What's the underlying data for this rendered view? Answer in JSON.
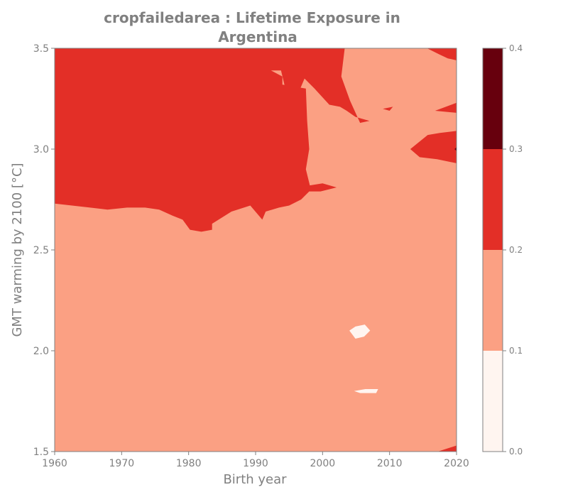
{
  "chart_data": {
    "type": "heatmap",
    "subtype": "filled-contour",
    "title_line1": "cropfailedarea : Lifetime Exposure in",
    "title_line2": "Argentina",
    "xlabel": "Birth year",
    "ylabel": "GMT warming by 2100 [°C]",
    "xlim": [
      1960,
      2020
    ],
    "ylim": [
      1.5,
      3.5
    ],
    "x_ticks": [
      "1960",
      "1970",
      "1980",
      "1990",
      "2000",
      "2010",
      "2020"
    ],
    "y_ticks": [
      "1.5",
      "2.0",
      "2.5",
      "3.0",
      "3.5"
    ],
    "colorbar": {
      "levels": [
        0.0,
        0.1,
        0.2,
        0.3,
        0.4
      ],
      "tick_labels": [
        "0.0",
        "0.1",
        "0.2",
        "0.3",
        "0.4"
      ],
      "colors": [
        "#fff5f0",
        "#fba083",
        "#e32f27",
        "#67000d"
      ]
    },
    "regions": [
      {
        "name": "background-0.1-0.2",
        "level": 1,
        "points": [
          [
            1960,
            1.5
          ],
          [
            2020,
            1.5
          ],
          [
            2020,
            3.5
          ],
          [
            1960,
            3.5
          ]
        ]
      },
      {
        "name": "upper-left-0.2-0.3",
        "level": 2,
        "points": [
          [
            1960,
            3.5
          ],
          [
            2003.3,
            3.5
          ],
          [
            2002.8,
            3.36
          ],
          [
            2004.1,
            3.24
          ],
          [
            2005.6,
            3.13
          ],
          [
            2007.0,
            3.14
          ],
          [
            2004.9,
            3.16
          ],
          [
            2003.6,
            3.19
          ],
          [
            2002.6,
            3.21
          ],
          [
            2001.0,
            3.22
          ],
          [
            1998.8,
            3.3
          ],
          [
            1997.3,
            3.35
          ],
          [
            1995.9,
            3.24
          ],
          [
            1994.8,
            3.25
          ],
          [
            1993.8,
            3.39
          ],
          [
            1992.3,
            3.39
          ],
          [
            1994.0,
            3.36
          ],
          [
            1994.0,
            3.32
          ],
          [
            1997.5,
            3.3
          ],
          [
            1997.7,
            3.14
          ],
          [
            1998.0,
            3.0
          ],
          [
            1997.5,
            2.9
          ],
          [
            1998.1,
            2.82
          ],
          [
            2000.0,
            2.83
          ],
          [
            2002.1,
            2.81
          ],
          [
            1999.7,
            2.79
          ],
          [
            1998.0,
            2.79
          ],
          [
            1996.8,
            2.75
          ],
          [
            1995.0,
            2.72
          ],
          [
            1993.5,
            2.71
          ],
          [
            1991.5,
            2.69
          ],
          [
            1991.0,
            2.65
          ],
          [
            1989.2,
            2.72
          ],
          [
            1986.4,
            2.69
          ],
          [
            1983.5,
            2.63
          ],
          [
            1983.5,
            2.6
          ],
          [
            1981.9,
            2.59
          ],
          [
            1980.2,
            2.6
          ],
          [
            1979.1,
            2.65
          ],
          [
            1977.6,
            2.67
          ],
          [
            1975.6,
            2.7
          ],
          [
            1973.5,
            2.71
          ],
          [
            1970.8,
            2.71
          ],
          [
            1967.9,
            2.7
          ],
          [
            1965.3,
            2.71
          ],
          [
            1960,
            2.73
          ]
        ]
      },
      {
        "name": "top-right-corner-0.2-0.3",
        "level": 2,
        "points": [
          [
            2015.6,
            3.5
          ],
          [
            2020,
            3.5
          ],
          [
            2020,
            3.44
          ],
          [
            2018.7,
            3.45
          ],
          [
            2017.4,
            3.47
          ]
        ]
      },
      {
        "name": "right-wedge-0.2-0.3",
        "level": 2,
        "points": [
          [
            2020,
            3.09
          ],
          [
            2017.5,
            3.08
          ],
          [
            2015.7,
            3.07
          ],
          [
            2013.1,
            3.0
          ],
          [
            2014.5,
            2.96
          ],
          [
            2017.1,
            2.95
          ],
          [
            2020,
            2.93
          ]
        ]
      },
      {
        "name": "right-spike-0.2-0.3",
        "level": 2,
        "points": [
          [
            2020,
            3.23
          ],
          [
            2016.8,
            3.19
          ],
          [
            2020,
            3.18
          ]
        ]
      },
      {
        "name": "small-blob-0.2-0.3",
        "level": 2,
        "points": [
          [
            2009.0,
            3.2
          ],
          [
            2010.5,
            3.21
          ],
          [
            2010.0,
            3.19
          ]
        ]
      },
      {
        "name": "bottom-right-corner-0.2-0.3",
        "level": 2,
        "points": [
          [
            2017.2,
            1.5
          ],
          [
            2020,
            1.5
          ],
          [
            2020,
            1.53
          ]
        ]
      },
      {
        "name": "tiny-dark-0.3-0.4",
        "level": 3,
        "points": [
          [
            2019.7,
            3.0
          ],
          [
            2020,
            3.01
          ],
          [
            2020,
            2.99
          ]
        ]
      },
      {
        "name": "white-blob-upper-0.0-0.1",
        "level": 0,
        "points": [
          [
            2004.0,
            2.1
          ],
          [
            2004.9,
            2.12
          ],
          [
            2006.3,
            2.13
          ],
          [
            2007.1,
            2.1
          ],
          [
            2006.2,
            2.07
          ],
          [
            2004.9,
            2.06
          ]
        ]
      },
      {
        "name": "white-blob-lower-0.0-0.1",
        "level": 0,
        "points": [
          [
            2004.7,
            1.8
          ],
          [
            2006.4,
            1.81
          ],
          [
            2008.3,
            1.81
          ],
          [
            2008.0,
            1.79
          ],
          [
            2005.6,
            1.79
          ]
        ]
      }
    ]
  }
}
